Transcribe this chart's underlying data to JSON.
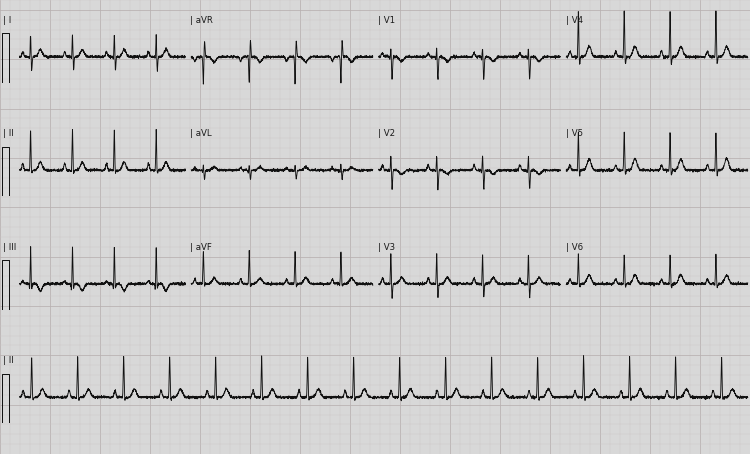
{
  "background_color": "#d8d8d8",
  "grid_bg_color": "#d4d4d4",
  "grid_major_color": "#b8b0b0",
  "grid_minor_color": "#ccc4c4",
  "line_color": "#111111",
  "line_width": 0.65,
  "fig_width": 7.5,
  "fig_height": 4.54,
  "dpi": 100,
  "heart_rate": 95,
  "row_labels": [
    [
      "I",
      "aVR",
      "V1",
      "V4"
    ],
    [
      "II",
      "aVL",
      "V2",
      "V5"
    ],
    [
      "III",
      "aVF",
      "V3",
      "V6"
    ],
    [
      "II",
      null,
      null,
      null
    ]
  ],
  "amplitudes": {
    "P": {
      "I": 0.1,
      "II": 0.13,
      "III": 0.06,
      "aVR": -0.09,
      "aVL": 0.05,
      "aVF": 0.09,
      "V1": 0.07,
      "V2": 0.1,
      "V3": 0.11,
      "V4": 0.11,
      "V5": 0.1,
      "V6": 0.09
    },
    "Q": {
      "I": -0.06,
      "II": -0.02,
      "III": -0.15,
      "aVR": 0.01,
      "aVL": -0.04,
      "aVF": -0.02,
      "V1": -0.06,
      "V2": -0.05,
      "V3": -0.04,
      "V4": -0.03,
      "V5": -0.02,
      "V6": -0.02
    },
    "R": {
      "I": 0.45,
      "II": 0.8,
      "III": 0.75,
      "aVR": -0.55,
      "aVL": 0.12,
      "aVF": 0.65,
      "V1": 0.18,
      "V2": 0.3,
      "V3": 0.6,
      "V4": 0.9,
      "V5": 0.75,
      "V6": 0.58
    },
    "S": {
      "I": -0.28,
      "II": -0.06,
      "III": -0.09,
      "aVR": 0.32,
      "aVL": -0.18,
      "aVF": -0.05,
      "V1": -0.45,
      "V2": -0.38,
      "V3": -0.28,
      "V4": -0.16,
      "V5": -0.1,
      "V6": -0.07
    },
    "T": {
      "I": 0.14,
      "II": 0.16,
      "III": -0.14,
      "aVR": -0.1,
      "aVL": 0.06,
      "aVF": 0.11,
      "V1": -0.09,
      "V2": -0.08,
      "V3": 0.12,
      "V4": 0.2,
      "V5": 0.22,
      "V6": 0.17
    }
  }
}
